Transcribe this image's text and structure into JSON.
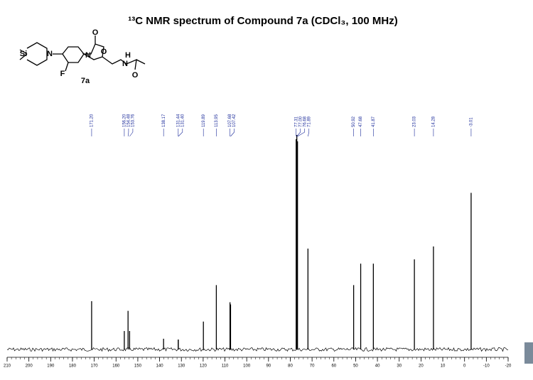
{
  "chart_data": {
    "type": "nmr",
    "title": "¹³C NMR spectrum of Compound 7a  (CDCl₃, 100 MHz)",
    "compound_label": "7a",
    "atom_labels": [
      "Si",
      "N",
      "F",
      "N",
      "O",
      "O",
      "H",
      "N",
      "O"
    ],
    "x": [
      171.2,
      156.2,
      154.48,
      153.76,
      138.17,
      131.44,
      131.4,
      119.89,
      113.95,
      107.68,
      107.42,
      77.31,
      77.0,
      76.68,
      71.89,
      50.92,
      47.68,
      41.87,
      23.03,
      14.28,
      -3.01
    ],
    "value_labels": [
      "171.20",
      "156.20",
      "154.48",
      "153.76",
      "138.17",
      "131.44",
      "131.40",
      "119.89",
      "113.95",
      "107.68",
      "107.42",
      "77.31",
      "77.00",
      "76.68",
      "71.89",
      "50.92",
      "47.68",
      "41.87",
      "23.03",
      "14.28",
      "-3.01"
    ],
    "values": [
      22.5,
      8.6,
      18,
      8.6,
      5,
      4.6,
      4.6,
      13,
      30,
      22,
      21,
      98,
      100,
      97,
      47,
      30,
      40,
      40,
      42,
      48,
      73
    ],
    "color": "#000000",
    "label_color": "#1a2a9a",
    "xlim": [
      210,
      -20
    ],
    "xticks": [
      210,
      200,
      190,
      180,
      170,
      160,
      150,
      140,
      130,
      120,
      110,
      100,
      90,
      80,
      70,
      60,
      50,
      40,
      30,
      20,
      10,
      0,
      -10,
      -20
    ],
    "ylim": [
      0,
      100
    ]
  }
}
